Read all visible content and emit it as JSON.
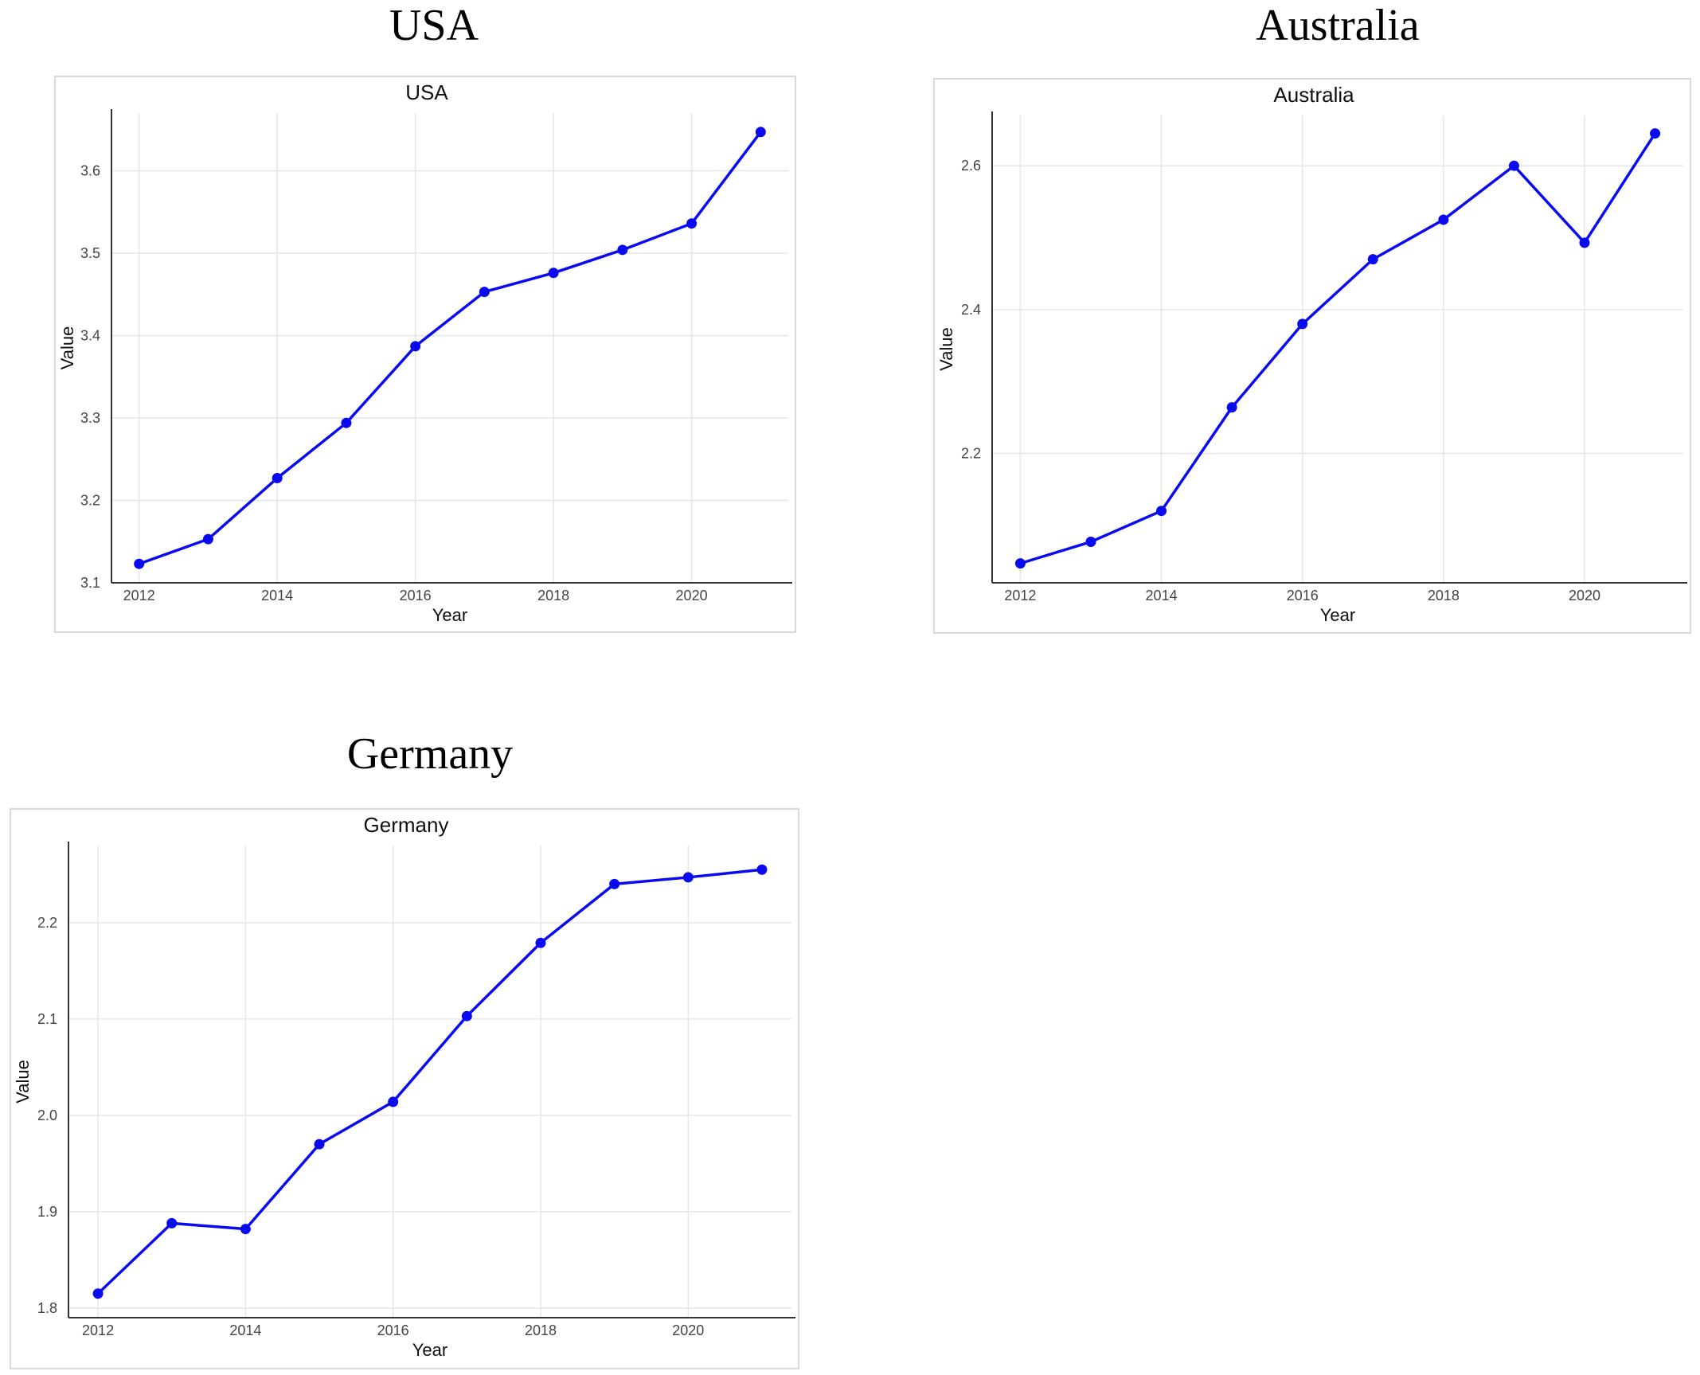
{
  "figure": {
    "panel_titles": [
      "USA",
      "Australia",
      "Germany"
    ]
  },
  "colors": {
    "series": "#0a0af0",
    "frame": "#d9d9d9",
    "grid": "#e6e6e6"
  },
  "chart_data": [
    {
      "type": "line",
      "title": "USA",
      "xlabel": "Year",
      "ylabel": "Value",
      "x": [
        2012,
        2013,
        2014,
        2015,
        2016,
        2017,
        2018,
        2019,
        2020,
        2021
      ],
      "series": [
        {
          "values": [
            3.123,
            3.153,
            3.227,
            3.294,
            3.387,
            3.453,
            3.476,
            3.504,
            3.536,
            3.647
          ]
        }
      ],
      "xticks": [
        2012,
        2014,
        2016,
        2018,
        2020
      ],
      "yticks": [
        3.1,
        3.2,
        3.3,
        3.4,
        3.5,
        3.6
      ],
      "ytick_labels": [
        "3.1",
        "3.2",
        "3.3",
        "3.4",
        "3.5",
        "3.6"
      ],
      "xlim": [
        2011.6,
        2021.4
      ],
      "ylim": [
        3.1,
        3.67
      ],
      "grid": true
    },
    {
      "type": "line",
      "title": "Australia",
      "xlabel": "Year",
      "ylabel": "Value",
      "x": [
        2012,
        2013,
        2014,
        2015,
        2016,
        2017,
        2018,
        2019,
        2020,
        2021
      ],
      "series": [
        {
          "values": [
            2.047,
            2.077,
            2.12,
            2.264,
            2.38,
            2.47,
            2.525,
            2.6,
            2.493,
            2.645
          ]
        }
      ],
      "xticks": [
        2012,
        2014,
        2016,
        2018,
        2020
      ],
      "yticks": [
        2.2,
        2.4,
        2.6
      ],
      "ytick_labels": [
        "2.2",
        "2.4",
        "2.6"
      ],
      "xlim": [
        2011.6,
        2021.4
      ],
      "ylim": [
        2.02,
        2.67
      ],
      "grid": true
    },
    {
      "type": "line",
      "title": "Germany",
      "xlabel": "Year",
      "ylabel": "Value",
      "x": [
        2012,
        2013,
        2014,
        2015,
        2016,
        2017,
        2018,
        2019,
        2020,
        2021
      ],
      "series": [
        {
          "values": [
            1.815,
            1.888,
            1.882,
            1.97,
            2.014,
            2.103,
            2.179,
            2.24,
            2.247,
            2.255
          ]
        }
      ],
      "xticks": [
        2012,
        2014,
        2016,
        2018,
        2020
      ],
      "yticks": [
        1.8,
        1.9,
        2.0,
        2.1,
        2.2
      ],
      "ytick_labels": [
        "1.8",
        "1.9",
        "2.0",
        "2.1",
        "2.2"
      ],
      "xlim": [
        2011.6,
        2021.4
      ],
      "ylim": [
        1.79,
        2.28
      ],
      "grid": true
    }
  ]
}
